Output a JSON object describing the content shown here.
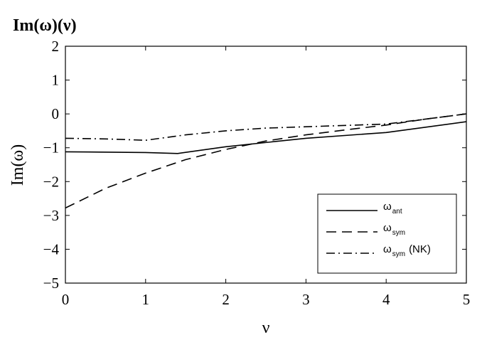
{
  "chart_data": {
    "type": "line",
    "title": "Im(ω)(ν)",
    "xlabel": "ν",
    "ylabel": "Im(ω)",
    "xlim": [
      0,
      5
    ],
    "ylim": [
      -5,
      2
    ],
    "xticks": [
      "0",
      "1",
      "2",
      "3",
      "4",
      "5"
    ],
    "yticks": [
      "2",
      "1",
      "0",
      "−1",
      "−2",
      "−3",
      "−4",
      "−5"
    ],
    "grid": false,
    "legend_position": "bottom-right",
    "series": [
      {
        "name": "ωant",
        "name_main": "ω",
        "name_sub": "ant",
        "name_suffix": "",
        "style": "solid",
        "x": [
          0,
          1,
          1.4,
          2,
          3,
          4,
          5
        ],
        "y": [
          -1.12,
          -1.14,
          -1.17,
          -0.97,
          -0.72,
          -0.55,
          -0.23
        ]
      },
      {
        "name": "ωsym",
        "name_main": "ω",
        "name_sub": "sym",
        "name_suffix": "",
        "style": "dashed",
        "x": [
          0,
          0.5,
          1,
          1.5,
          2,
          2.5,
          3,
          3.5,
          4,
          4.5,
          5
        ],
        "y": [
          -2.78,
          -2.2,
          -1.75,
          -1.35,
          -1.05,
          -0.8,
          -0.62,
          -0.47,
          -0.33,
          -0.15,
          0.0
        ]
      },
      {
        "name": "ωsym (NK)",
        "name_main": "ω",
        "name_sub": "sym",
        "name_suffix": "(NK)",
        "style": "dashdot",
        "x": [
          0,
          0.5,
          1,
          1.5,
          2,
          2.5,
          3,
          3.5,
          4,
          4.5,
          5
        ],
        "y": [
          -0.72,
          -0.74,
          -0.78,
          -0.62,
          -0.5,
          -0.42,
          -0.38,
          -0.34,
          -0.3,
          -0.15,
          0.0
        ]
      }
    ]
  }
}
